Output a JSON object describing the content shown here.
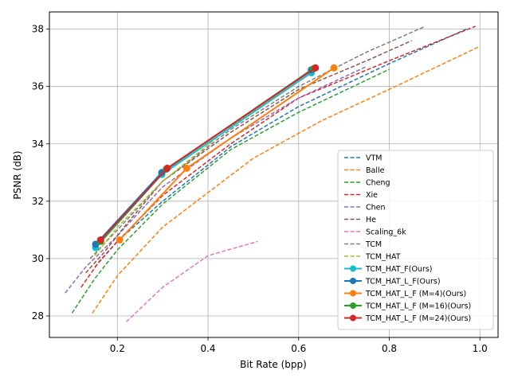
{
  "chart_data": {
    "type": "line",
    "title": "",
    "xlabel": "Bit Rate (bpp)",
    "ylabel": "PSNR (dB)",
    "xlim": [
      0.05,
      1.04
    ],
    "ylim": [
      27.25,
      38.6
    ],
    "xticks": [
      0.2,
      0.4,
      0.6,
      0.8,
      1.0
    ],
    "yticks": [
      28,
      30,
      32,
      34,
      36,
      38
    ],
    "xtick_labels": [
      "0.2",
      "0.4",
      "0.6",
      "0.8",
      "1.0"
    ],
    "ytick_labels": [
      "28",
      "30",
      "32",
      "34",
      "36",
      "38"
    ],
    "grid": true,
    "legend_position": "lower-right",
    "series": [
      {
        "name": "VTM",
        "color": "#1f77b4",
        "dashed": true,
        "marker": false,
        "x": [
          0.15,
          0.2,
          0.3,
          0.45,
          0.6,
          0.8,
          0.97
        ],
        "y": [
          29.7,
          30.6,
          32.0,
          33.9,
          35.3,
          36.8,
          38.0
        ]
      },
      {
        "name": "Balle",
        "color": "#ff7f0e",
        "dashed": true,
        "marker": false,
        "x": [
          0.145,
          0.2,
          0.3,
          0.4,
          0.5,
          0.65,
          0.8,
          1.0
        ],
        "y": [
          28.1,
          29.4,
          31.1,
          32.3,
          33.5,
          34.8,
          35.9,
          37.4
        ]
      },
      {
        "name": "Cheng",
        "color": "#2ca02c",
        "dashed": true,
        "marker": false,
        "x": [
          0.1,
          0.15,
          0.2,
          0.3,
          0.45,
          0.6,
          0.8
        ],
        "y": [
          28.1,
          29.3,
          30.3,
          31.9,
          33.8,
          35.1,
          36.6
        ]
      },
      {
        "name": "Xie",
        "color": "#d62728",
        "dashed": true,
        "marker": false,
        "x": [
          0.12,
          0.16,
          0.2,
          0.3,
          0.45,
          0.6,
          0.8,
          0.99
        ],
        "y": [
          29.0,
          29.9,
          30.6,
          32.2,
          34.0,
          35.6,
          36.9,
          38.1
        ]
      },
      {
        "name": "Chen",
        "color": "#9467bd",
        "dashed": true,
        "marker": false,
        "x": [
          0.085,
          0.13,
          0.2,
          0.3,
          0.45,
          0.6,
          0.75
        ],
        "y": [
          28.8,
          29.7,
          30.8,
          32.5,
          34.2,
          35.6,
          36.7
        ]
      },
      {
        "name": "He",
        "color": "#8c564b",
        "dashed": true,
        "marker": false,
        "x": [
          0.13,
          0.17,
          0.22,
          0.3,
          0.45,
          0.6,
          0.75,
          0.85
        ],
        "y": [
          29.5,
          30.2,
          31.2,
          32.7,
          34.4,
          35.9,
          36.9,
          37.6
        ]
      },
      {
        "name": "Scaling_6k",
        "color": "#e377c2",
        "dashed": true,
        "marker": false,
        "x": [
          0.22,
          0.3,
          0.4,
          0.51
        ],
        "y": [
          27.8,
          29.0,
          30.1,
          30.6
        ]
      },
      {
        "name": "TCM",
        "color": "#7f7f7f",
        "dashed": true,
        "marker": false,
        "x": [
          0.14,
          0.2,
          0.3,
          0.45,
          0.6,
          0.75,
          0.88
        ],
        "y": [
          30.0,
          31.0,
          32.7,
          34.5,
          36.0,
          37.2,
          38.1
        ]
      },
      {
        "name": "TCM_HAT",
        "color": "#bcbd22",
        "dashed": true,
        "marker": false,
        "x": [
          0.15,
          0.2,
          0.3,
          0.45,
          0.62
        ],
        "y": [
          30.1,
          31.1,
          32.7,
          34.6,
          36.4
        ]
      },
      {
        "name": "TCM_HAT_F(Ours)",
        "color": "#17becf",
        "dashed": false,
        "marker": true,
        "x": [
          0.152,
          0.298,
          0.628
        ],
        "y": [
          30.38,
          32.93,
          36.48
        ]
      },
      {
        "name": "TCM_HAT_L_F(Ours)",
        "color": "#1f77b4",
        "dashed": false,
        "marker": true,
        "x": [
          0.152,
          0.298,
          0.628
        ],
        "y": [
          30.5,
          33.0,
          36.58
        ]
      },
      {
        "name": "TCM_HAT_L_F (M=4)(Ours)",
        "color": "#ff7f0e",
        "dashed": false,
        "marker": true,
        "x": [
          0.205,
          0.353,
          0.678
        ],
        "y": [
          30.65,
          33.15,
          36.65
        ]
      },
      {
        "name": "TCM_HAT_L_F (M=16)(Ours)",
        "color": "#2ca02c",
        "dashed": false,
        "marker": true,
        "x": [
          0.163,
          0.308,
          0.633
        ],
        "y": [
          30.6,
          33.12,
          36.62
        ]
      },
      {
        "name": "TCM_HAT_L_F (M=24)(Ours)",
        "color": "#d62728",
        "dashed": false,
        "marker": true,
        "x": [
          0.163,
          0.31,
          0.637
        ],
        "y": [
          30.65,
          33.15,
          36.65
        ]
      }
    ]
  }
}
